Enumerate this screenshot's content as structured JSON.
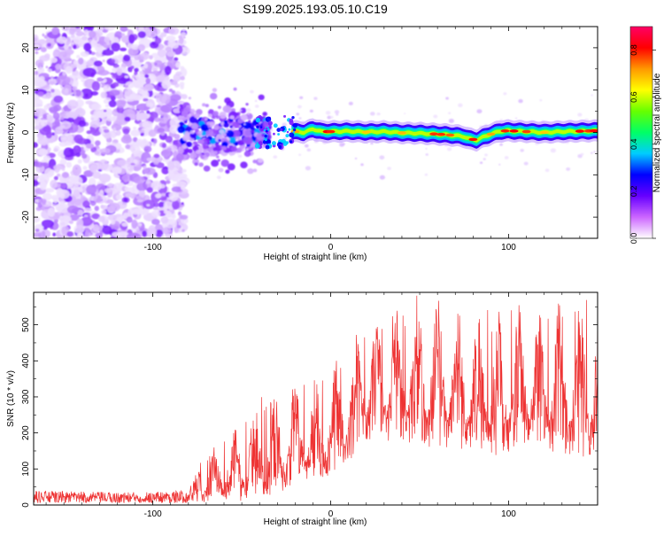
{
  "figure": {
    "title": "S199.2025.193.05.10.C19"
  },
  "chart_data": [
    {
      "type": "heatmap",
      "xlabel": "Height of straight line (km)",
      "ylabel": "Frequency (Hz)",
      "xlim": [
        -167,
        150
      ],
      "ylim": [
        -25,
        25
      ],
      "x_ticks": [
        -100,
        0,
        100
      ],
      "y_ticks": [
        -20,
        -10,
        0,
        10,
        20
      ],
      "colorbar": {
        "label": "Normalized spectral amplitude",
        "range": [
          0.0,
          0.9
        ],
        "ticks": [
          "0.0",
          "0.2",
          "0.4",
          "0.6",
          "0.8"
        ],
        "colors": [
          "#ffffff",
          "#cc66ff",
          "#6600ff",
          "#0000ff",
          "#00ccff",
          "#00ff66",
          "#66ff00",
          "#ffff00",
          "#ff9900",
          "#ff0000",
          "#ff0066"
        ]
      },
      "trace": {
        "x": [
          -22,
          -15,
          -10,
          -5,
          0,
          10,
          20,
          30,
          40,
          50,
          60,
          70,
          75,
          78,
          82,
          85,
          90,
          95,
          100,
          110,
          120,
          130,
          140,
          150
        ],
        "freq": [
          0.3,
          0.0,
          0.8,
          0.2,
          0.2,
          0.3,
          0.1,
          0.2,
          -0.1,
          -0.2,
          -0.4,
          -0.7,
          -1.0,
          -1.5,
          -1.8,
          -1.2,
          -0.4,
          0.3,
          0.4,
          0.2,
          0.0,
          0.2,
          0.3,
          0.4
        ]
      }
    },
    {
      "type": "line",
      "xlabel": "Height of straight line (km)",
      "ylabel": "SNR (10 * v/v)",
      "xlim": [
        -167,
        150
      ],
      "ylim": [
        0,
        590
      ],
      "x_ticks": [
        -100,
        0,
        100
      ],
      "y_ticks": [
        0,
        100,
        200,
        300,
        400,
        500
      ],
      "color": "#ee3333",
      "envelope": {
        "x": [
          -167,
          -120,
          -80,
          -73,
          -60,
          -50,
          -40,
          -30,
          -20,
          -10,
          0,
          10,
          20,
          30,
          40,
          50,
          60,
          70,
          80,
          90,
          100,
          110,
          120,
          130,
          140,
          150
        ],
        "max": [
          40,
          35,
          40,
          120,
          200,
          230,
          300,
          310,
          340,
          360,
          400,
          440,
          520,
          540,
          560,
          590,
          580,
          560,
          560,
          540,
          550,
          560,
          570,
          575,
          580,
          570
        ],
        "min": [
          5,
          5,
          5,
          5,
          10,
          10,
          20,
          30,
          50,
          60,
          80,
          120,
          180,
          180,
          170,
          150,
          160,
          150,
          140,
          130,
          140,
          150,
          150,
          140,
          120,
          110
        ]
      }
    }
  ]
}
